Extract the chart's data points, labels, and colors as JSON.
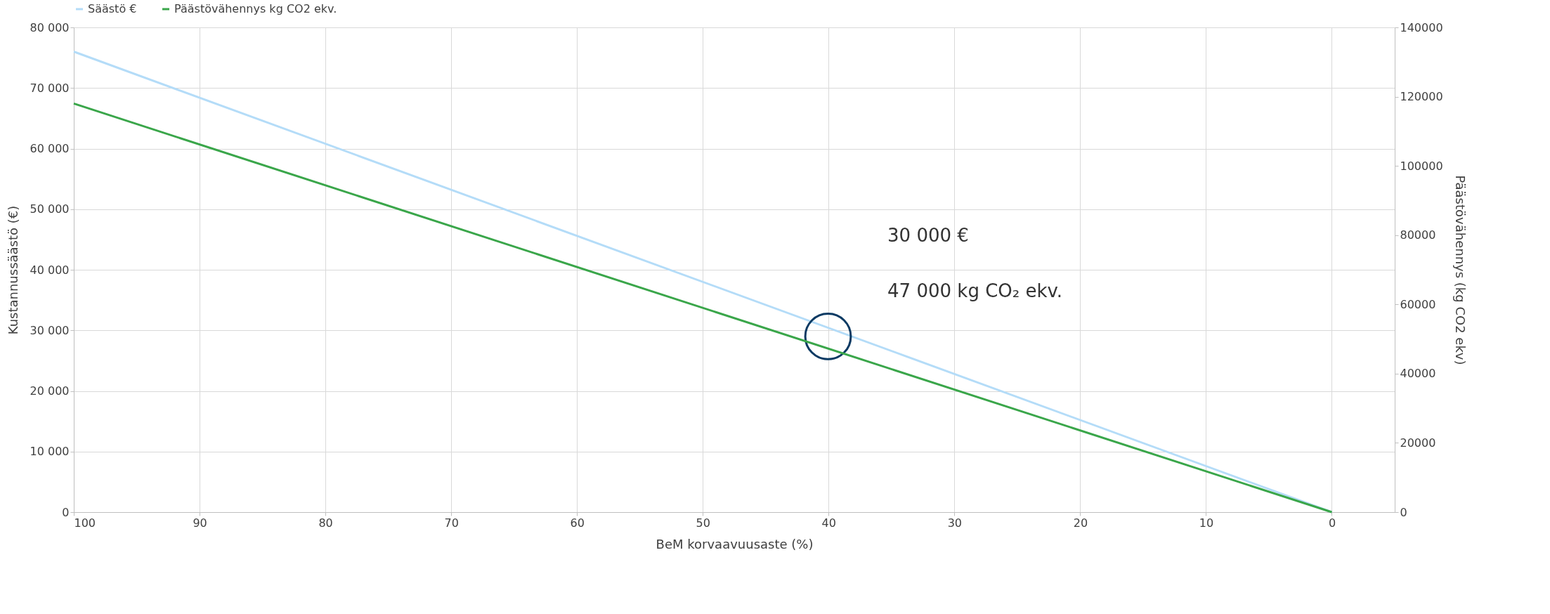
{
  "chart_data": {
    "type": "line",
    "xlabel": "BeM korvaavuusaste (%)",
    "ylabel": "Kustannussäästö (€)",
    "y2label": "Päästövähennys (kg CO2 ekv)",
    "x": [
      100,
      0
    ],
    "series": [
      {
        "name": "Säästö €",
        "color": "#b4dcf8",
        "values": [
          76000,
          0
        ]
      },
      {
        "name": "Päästövähennys kg CO2 ekv.",
        "color": "#3aa64a",
        "values": [
          118000,
          0
        ],
        "axis": "y2"
      }
    ],
    "xlim": [
      100,
      -5
    ],
    "xticks": [
      100,
      90,
      80,
      70,
      60,
      50,
      40,
      30,
      20,
      10,
      0
    ],
    "ylim": [
      0,
      80000
    ],
    "yticks": [
      0,
      {
        "value": 10000,
        "label": "10 000"
      },
      {
        "value": 20000,
        "label": "20 000"
      },
      {
        "value": 30000,
        "label": "30 000"
      },
      {
        "value": 40000,
        "label": "40 000"
      },
      {
        "value": 50000,
        "label": "50 000"
      },
      {
        "value": 60000,
        "label": "60 000"
      },
      {
        "value": 70000,
        "label": "70 000"
      },
      {
        "value": 80000,
        "label": "80 000"
      }
    ],
    "y2lim": [
      0,
      140000
    ],
    "y2ticks": [
      0,
      20000,
      40000,
      60000,
      80000,
      100000,
      120000,
      140000
    ],
    "annotations": [
      "30 000 €",
      "47 000 kg CO₂ ekv."
    ],
    "grid": true,
    "legend": "top",
    "marker": "none",
    "line_style": "solid"
  }
}
